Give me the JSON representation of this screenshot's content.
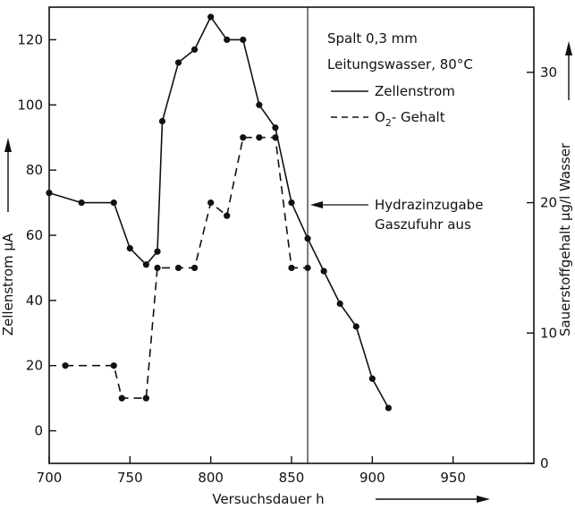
{
  "chart_data": {
    "type": "line",
    "xlabel": "Versuchsdauer  h",
    "ylabel_left": "Zellenstrom  µA",
    "ylabel_right": "Sauerstoffgehalt  µg/l Wasser",
    "xlim": [
      700,
      1000
    ],
    "ylim_left": [
      -10,
      130
    ],
    "ylim_right": [
      0,
      35
    ],
    "x_ticks": [
      700,
      750,
      800,
      850,
      900,
      950
    ],
    "y_ticks_left": [
      0,
      20,
      40,
      60,
      80,
      100,
      120
    ],
    "y_ticks_right": [
      0,
      10,
      20,
      30
    ],
    "annotations": {
      "conditions_1": "Spalt 0,3 mm",
      "conditions_2": "Leitungswasser, 80°C",
      "event_1": "Hydrazinzugabe",
      "event_2": "Gaszufuhr aus",
      "event_x": 860
    },
    "series": [
      {
        "name": "Zellenstrom",
        "style": "solid",
        "axis": "left",
        "x": [
          700,
          720,
          740,
          750,
          760,
          767,
          770,
          780,
          790,
          800,
          810,
          820,
          830,
          840,
          850,
          860,
          870,
          880,
          890,
          900,
          910
        ],
        "y": [
          73,
          70,
          70,
          56,
          51,
          55,
          95,
          113,
          117,
          127,
          120,
          120,
          100,
          93,
          70,
          59,
          49,
          39,
          32,
          16,
          7
        ]
      },
      {
        "name": "O2-Gehalt",
        "legend_main": "O",
        "legend_sub": "2",
        "legend_rest": "- Gehalt",
        "style": "dashed",
        "axis": "left",
        "x": [
          710,
          740,
          745,
          760,
          767,
          780,
          790,
          800,
          810,
          820,
          830,
          840,
          850,
          860
        ],
        "y": [
          20,
          20,
          10,
          10,
          50,
          50,
          50,
          70,
          66,
          90,
          90,
          90,
          50,
          50
        ]
      }
    ]
  }
}
